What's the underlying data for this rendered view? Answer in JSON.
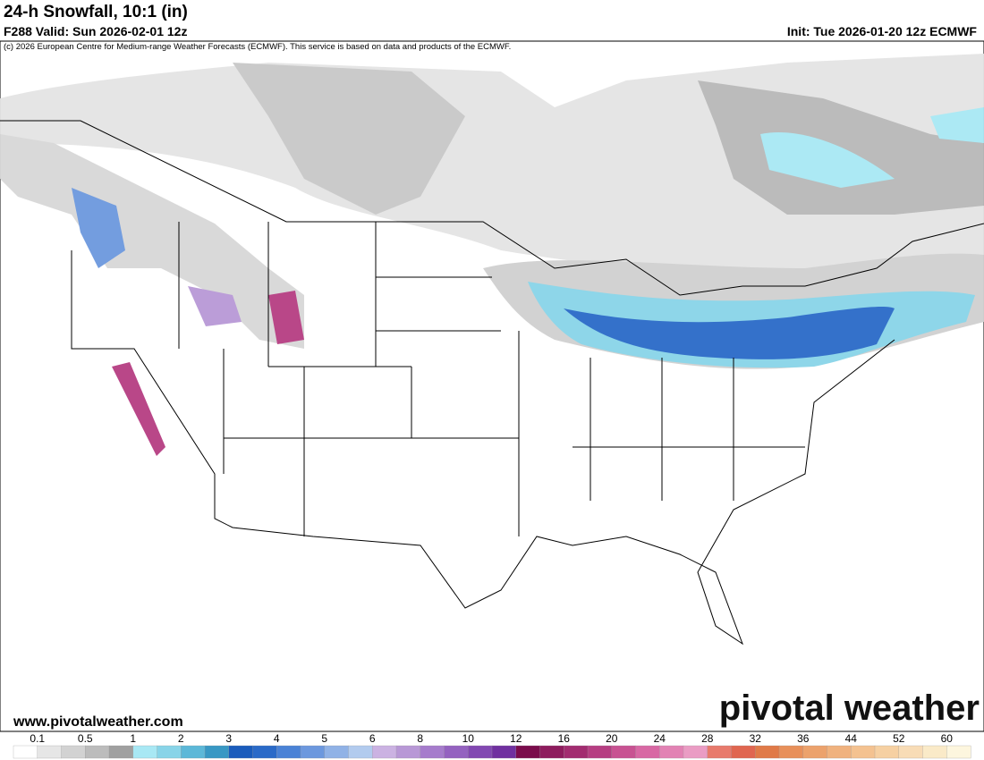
{
  "header": {
    "title": "24-h Snowfall, 10:1 (in)",
    "valid": "F288 Valid: Sun 2026-02-01 12z",
    "init": "Init: Tue 2026-01-20 12z ECMWF",
    "credit": "(c) 2026 European Centre for Medium-range Weather Forecasts (ECMWF). This service is based on data and products of the ECMWF."
  },
  "footer": {
    "url": "www.pivotalweather.com",
    "logo": "pivotal weather"
  },
  "legend": {
    "levels": [
      0.1,
      0.5,
      1,
      2,
      3,
      4,
      5,
      6,
      8,
      10,
      12,
      16,
      20,
      24,
      28,
      32,
      36,
      44,
      52,
      60
    ],
    "colors": [
      "#ffffff",
      "#e6e6e6",
      "#d2d2d2",
      "#bcbcbc",
      "#a0a0a0",
      "#a8e8f4",
      "#88d4e8",
      "#5cb8d8",
      "#3898c4",
      "#1a5cbc",
      "#2a6ac8",
      "#4a82d6",
      "#6c98de",
      "#90b2e6",
      "#b2cbee",
      "#cbb2e2",
      "#b898d6",
      "#a67ccc",
      "#9462c0",
      "#8248b2",
      "#7030a0",
      "#7a0c4c",
      "#8e1c5e",
      "#a22c70",
      "#b63e82",
      "#c85292",
      "#d868a4",
      "#e282b4",
      "#ea9cc4",
      "#e87a6c",
      "#e06650",
      "#e07a48",
      "#e8905a",
      "#eca26c",
      "#f0b27e",
      "#f4c290",
      "#f6d0a2",
      "#f8dcb6",
      "#faeac8",
      "#fdf6de"
    ]
  }
}
